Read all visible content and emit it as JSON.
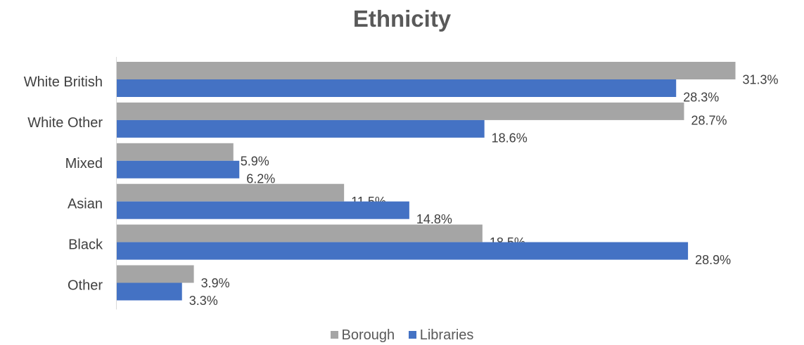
{
  "chart_data": {
    "type": "bar",
    "orientation": "horizontal",
    "title": "Ethnicity",
    "xlabel": "",
    "ylabel": "",
    "xlim": [
      0,
      32
    ],
    "grid": false,
    "legend_position": "bottom",
    "categories": [
      "White British",
      "White Other",
      "Mixed",
      "Asian",
      "Black",
      "Other"
    ],
    "series": [
      {
        "name": "Borough",
        "color": "#A5A5A5",
        "values": [
          31.3,
          28.7,
          5.9,
          11.5,
          18.5,
          3.9
        ],
        "labels": [
          "31.3%",
          "28.7%",
          "5.9%",
          "11.5%",
          "18.5%",
          "3.9%"
        ]
      },
      {
        "name": "Libraries",
        "color": "#4472C4",
        "values": [
          28.3,
          18.6,
          6.2,
          14.8,
          28.9,
          3.3
        ],
        "labels": [
          "28.3%",
          "18.6%",
          "6.2%",
          "14.8%",
          "28.9%",
          "3.3%"
        ]
      }
    ]
  }
}
